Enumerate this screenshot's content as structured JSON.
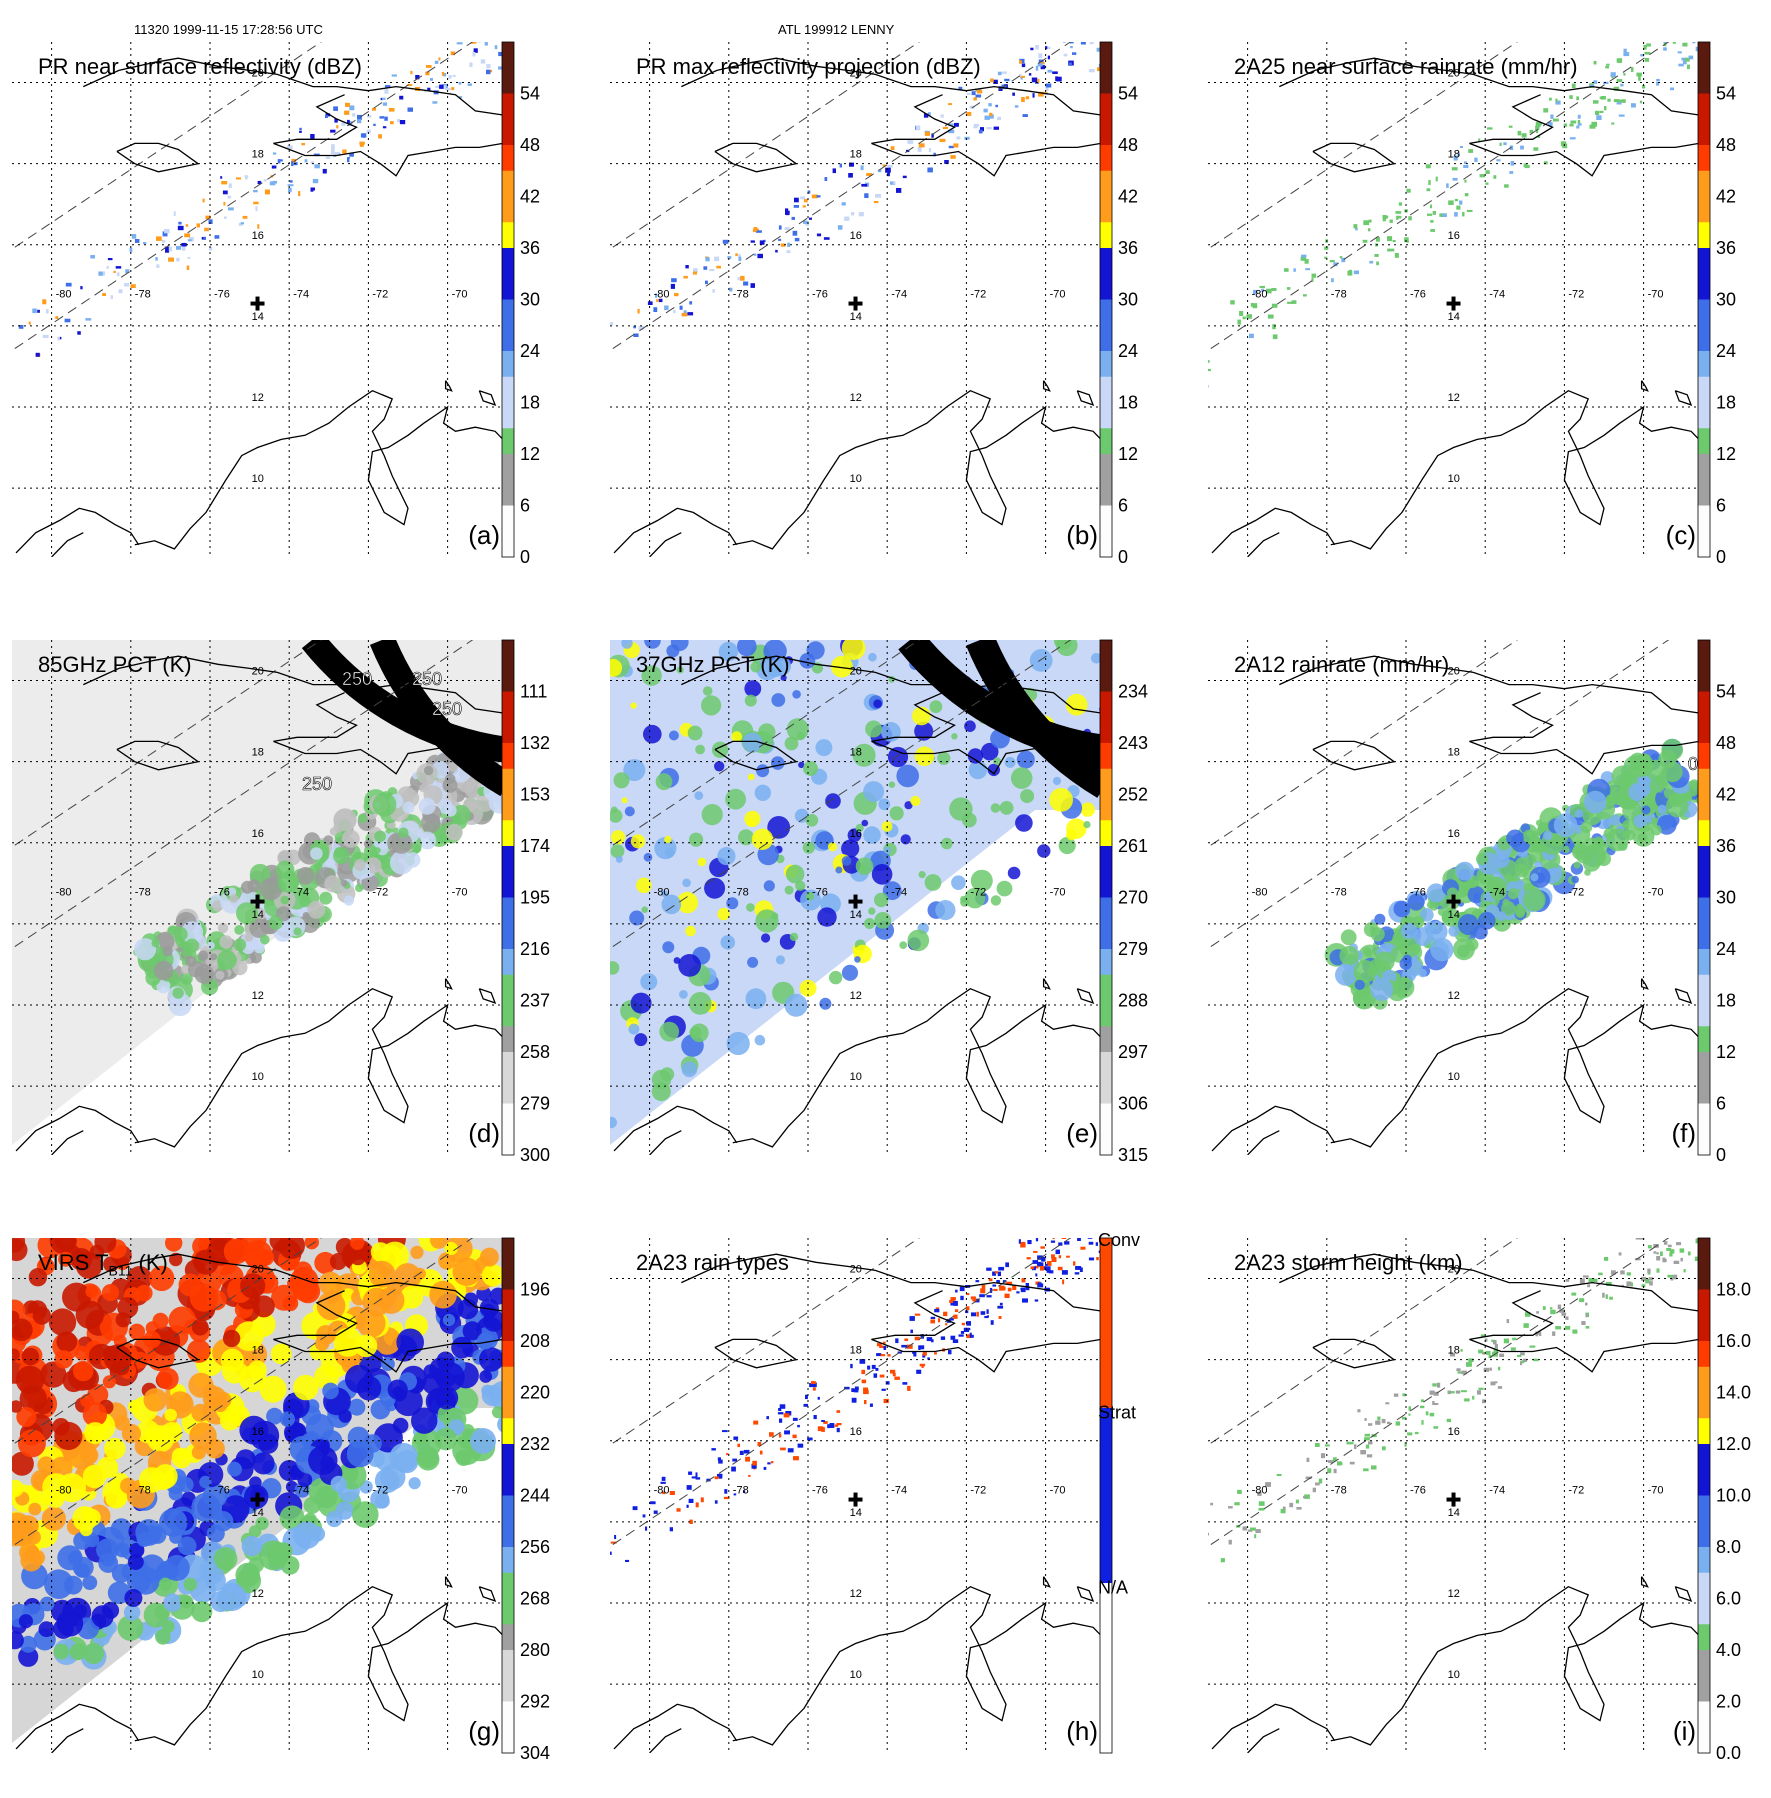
{
  "header": {
    "left": "11320 1999-11-15 17:28:56 UTC",
    "center": "ATL 199912 LENNY"
  },
  "colors": {
    "ramp": [
      "#fdfdfd",
      "#d8d8d8",
      "#a0a0a0",
      "#6dc96d",
      "#c8d8f6",
      "#7ab0f0",
      "#3e6fe8",
      "#1414d4",
      "#ffff00",
      "#ff9c1c",
      "#ff3c00",
      "#c81800",
      "#5a1a10"
    ],
    "rain_types": [
      "#ffffff",
      "#1020e0",
      "#ff4800"
    ],
    "swath_edge": "#444444",
    "coast": "#000000"
  },
  "map": {
    "lon_labels": [
      "-80",
      "-78",
      "-76",
      "-74",
      "-72",
      "-70"
    ],
    "lat_labels": [
      "10",
      "12",
      "14",
      "16",
      "18",
      "20"
    ],
    "center_marker": "plus-icon"
  },
  "chart_data": [
    {
      "id": "a",
      "type": "heatmap",
      "title": "PR near surface reflectivity (dBZ)",
      "panel_label": "(a)",
      "colorbar_ticks": [
        "54",
        "48",
        "42",
        "36",
        "30",
        "24",
        "18",
        "12",
        "6",
        "0"
      ],
      "range": [
        0,
        60
      ],
      "units": "dBZ"
    },
    {
      "id": "b",
      "type": "heatmap",
      "title": "PR max reflectivity projection (dBZ)",
      "panel_label": "(b)",
      "colorbar_ticks": [
        "54",
        "48",
        "42",
        "36",
        "30",
        "24",
        "18",
        "12",
        "6",
        "0"
      ],
      "range": [
        0,
        60
      ],
      "units": "dBZ"
    },
    {
      "id": "c",
      "type": "heatmap",
      "title": "2A25 near surface rainrate (mm/hr)",
      "panel_label": "(c)",
      "colorbar_ticks": [
        "54",
        "48",
        "42",
        "36",
        "30",
        "24",
        "18",
        "12",
        "6",
        "0"
      ],
      "range": [
        0,
        60
      ],
      "units": "mm/hr"
    },
    {
      "id": "d",
      "type": "heatmap",
      "title": "85GHz PCT (K)",
      "panel_label": "(d)",
      "colorbar_ticks": [
        "111",
        "132",
        "153",
        "174",
        "195",
        "216",
        "237",
        "258",
        "279",
        "300"
      ],
      "range": [
        90,
        300
      ],
      "units": "K",
      "contour_labels": [
        "250",
        "250",
        "250",
        "250"
      ]
    },
    {
      "id": "e",
      "type": "heatmap",
      "title": "37GHz PCT (K)",
      "panel_label": "(e)",
      "colorbar_ticks": [
        "234",
        "243",
        "252",
        "261",
        "270",
        "279",
        "288",
        "297",
        "306",
        "315"
      ],
      "range": [
        225,
        315
      ],
      "units": "K"
    },
    {
      "id": "f",
      "type": "heatmap",
      "title": "2A12 rainrate (mm/hr)",
      "panel_label": "(f)",
      "colorbar_ticks": [
        "54",
        "48",
        "42",
        "36",
        "30",
        "24",
        "18",
        "12",
        "6",
        "0"
      ],
      "range": [
        0,
        60
      ],
      "units": "mm/hr",
      "contour_labels": [
        "0"
      ]
    },
    {
      "id": "g",
      "type": "heatmap",
      "title": "VIRS T",
      "title_sub": "B11",
      "title_suffix": " (K)",
      "panel_label": "(g)",
      "colorbar_ticks": [
        "196",
        "208",
        "220",
        "232",
        "244",
        "256",
        "268",
        "280",
        "292",
        "304"
      ],
      "range": [
        184,
        304
      ],
      "units": "K"
    },
    {
      "id": "h",
      "type": "heatmap",
      "title": "2A23 rain types",
      "panel_label": "(h)",
      "colorbar_ticks": [
        "Conv",
        "Strat",
        "N/A"
      ],
      "categories": [
        "N/A",
        "Strat",
        "Conv"
      ]
    },
    {
      "id": "i",
      "type": "heatmap",
      "title": "2A23 storm height (km)",
      "panel_label": "(i)",
      "colorbar_ticks": [
        "18.0",
        "16.0",
        "14.0",
        "12.0",
        "10.0",
        "8.0",
        "6.0",
        "4.0",
        "2.0",
        "0.0"
      ],
      "range": [
        0,
        20
      ],
      "units": "km"
    }
  ]
}
